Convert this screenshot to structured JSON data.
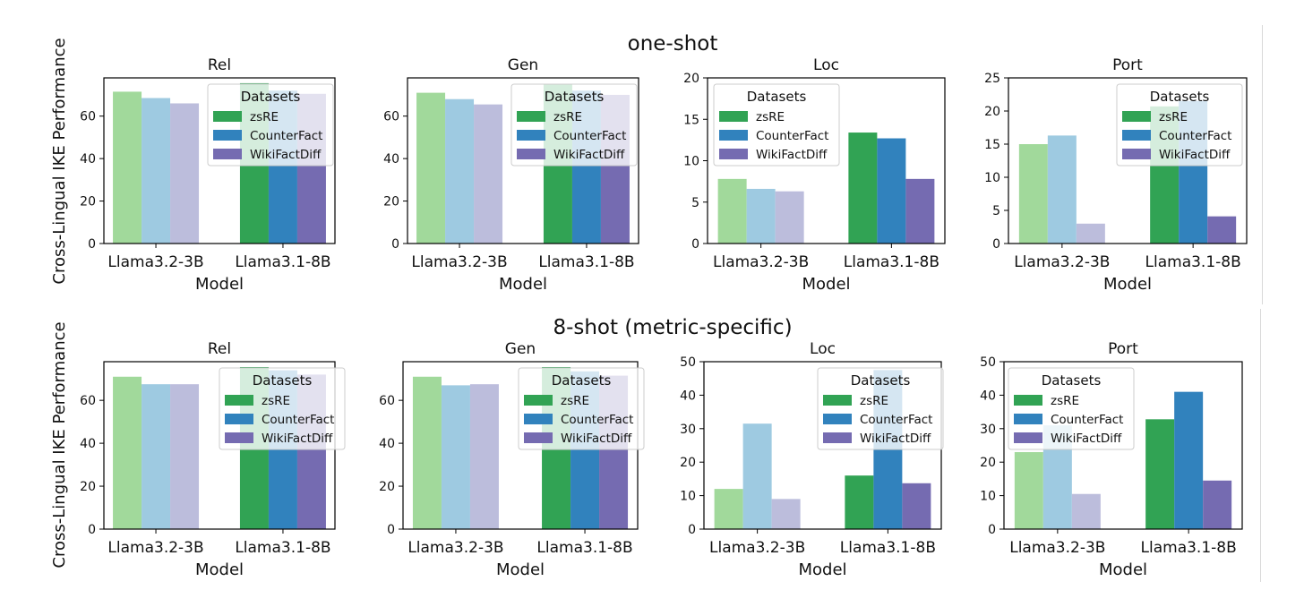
{
  "figure": {
    "row_titles": [
      "one-shot",
      "8-shot (metric-specific)"
    ],
    "ylabel": "Cross-Lingual IKE Performance",
    "xlabel": "Model",
    "legend_title": "Datasets"
  },
  "colors": {
    "Llama3.2-3B": [
      "#a1d99b",
      "#9ecae1",
      "#bcbddc"
    ],
    "Llama3.1-8B": [
      "#31a354",
      "#3182bd",
      "#756bb1"
    ]
  },
  "chart_data": [
    {
      "type": "bar",
      "row": "one-shot",
      "title": "Rel",
      "xlabel": "Model",
      "categories": [
        "Llama3.2-3B",
        "Llama3.1-8B"
      ],
      "series": [
        {
          "name": "zsRE",
          "values": [
            71.5,
            75.5
          ]
        },
        {
          "name": "CounterFact",
          "values": [
            68.5,
            72.0
          ]
        },
        {
          "name": "WikiFactDiff",
          "values": [
            66.0,
            70.5
          ]
        }
      ],
      "ylim": [
        0,
        78
      ],
      "yticks": [
        0,
        20,
        40,
        60
      ],
      "legend": "upper-right"
    },
    {
      "type": "bar",
      "row": "one-shot",
      "title": "Gen",
      "xlabel": "Model",
      "categories": [
        "Llama3.2-3B",
        "Llama3.1-8B"
      ],
      "series": [
        {
          "name": "zsRE",
          "values": [
            71.0,
            75.0
          ]
        },
        {
          "name": "CounterFact",
          "values": [
            68.0,
            72.0
          ]
        },
        {
          "name": "WikiFactDiff",
          "values": [
            65.5,
            70.0
          ]
        }
      ],
      "ylim": [
        0,
        78
      ],
      "yticks": [
        0,
        20,
        40,
        60
      ],
      "legend": "upper-right"
    },
    {
      "type": "bar",
      "row": "one-shot",
      "title": "Loc",
      "xlabel": "Model",
      "categories": [
        "Llama3.2-3B",
        "Llama3.1-8B"
      ],
      "series": [
        {
          "name": "zsRE",
          "values": [
            7.8,
            13.4
          ]
        },
        {
          "name": "CounterFact",
          "values": [
            6.6,
            12.7
          ]
        },
        {
          "name": "WikiFactDiff",
          "values": [
            6.3,
            7.8
          ]
        }
      ],
      "ylim": [
        0,
        20
      ],
      "yticks": [
        0,
        5,
        10,
        15,
        20
      ],
      "legend": "upper-left"
    },
    {
      "type": "bar",
      "row": "one-shot",
      "title": "Port",
      "xlabel": "Model",
      "categories": [
        "Llama3.2-3B",
        "Llama3.1-8B"
      ],
      "series": [
        {
          "name": "zsRE",
          "values": [
            15.0,
            20.7
          ]
        },
        {
          "name": "CounterFact",
          "values": [
            16.3,
            21.5
          ]
        },
        {
          "name": "WikiFactDiff",
          "values": [
            3.0,
            4.1
          ]
        }
      ],
      "ylim": [
        0,
        25
      ],
      "yticks": [
        0,
        5,
        10,
        15,
        20,
        25
      ],
      "legend": "upper-right"
    },
    {
      "type": "bar",
      "row": "8-shot (metric-specific)",
      "title": "Rel",
      "xlabel": "Model",
      "categories": [
        "Llama3.2-3B",
        "Llama3.1-8B"
      ],
      "series": [
        {
          "name": "zsRE",
          "values": [
            71.0,
            75.5
          ]
        },
        {
          "name": "CounterFact",
          "values": [
            67.5,
            74.0
          ]
        },
        {
          "name": "WikiFactDiff",
          "values": [
            67.5,
            72.0
          ]
        }
      ],
      "ylim": [
        0,
        78
      ],
      "yticks": [
        0,
        20,
        40,
        60
      ],
      "legend": "upper-right"
    },
    {
      "type": "bar",
      "row": "8-shot (metric-specific)",
      "title": "Gen",
      "xlabel": "Model",
      "categories": [
        "Llama3.2-3B",
        "Llama3.1-8B"
      ],
      "series": [
        {
          "name": "zsRE",
          "values": [
            71.0,
            75.5
          ]
        },
        {
          "name": "CounterFact",
          "values": [
            67.0,
            73.5
          ]
        },
        {
          "name": "WikiFactDiff",
          "values": [
            67.5,
            71.5
          ]
        }
      ],
      "ylim": [
        0,
        78
      ],
      "yticks": [
        0,
        20,
        40,
        60
      ],
      "legend": "upper-right"
    },
    {
      "type": "bar",
      "row": "8-shot (metric-specific)",
      "title": "Loc",
      "xlabel": "Model",
      "categories": [
        "Llama3.2-3B",
        "Llama3.1-8B"
      ],
      "series": [
        {
          "name": "zsRE",
          "values": [
            12.0,
            16.0
          ]
        },
        {
          "name": "CounterFact",
          "values": [
            31.5,
            47.5
          ]
        },
        {
          "name": "WikiFactDiff",
          "values": [
            9.0,
            13.7
          ]
        }
      ],
      "ylim": [
        0,
        50
      ],
      "yticks": [
        0,
        10,
        20,
        30,
        40,
        50
      ],
      "legend": "upper-right"
    },
    {
      "type": "bar",
      "row": "8-shot (metric-specific)",
      "title": "Port",
      "xlabel": "Model",
      "categories": [
        "Llama3.2-3B",
        "Llama3.1-8B"
      ],
      "series": [
        {
          "name": "zsRE",
          "values": [
            23.0,
            32.8
          ]
        },
        {
          "name": "CounterFact",
          "values": [
            31.0,
            41.0
          ]
        },
        {
          "name": "WikiFactDiff",
          "values": [
            10.5,
            14.5
          ]
        }
      ],
      "ylim": [
        0,
        50
      ],
      "yticks": [
        0,
        10,
        20,
        30,
        40,
        50
      ],
      "legend": "upper-left"
    }
  ]
}
